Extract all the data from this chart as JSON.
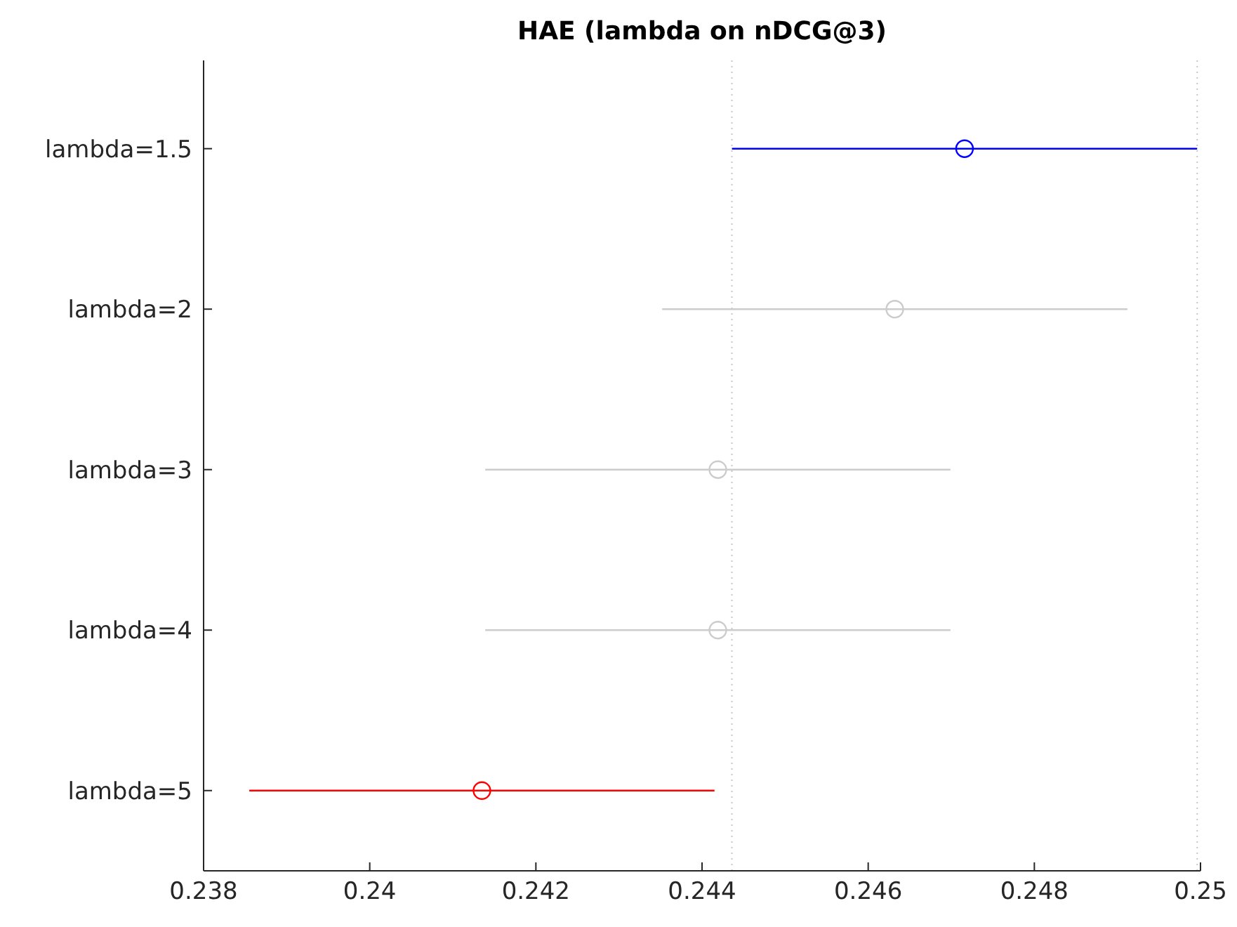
{
  "chart_data": {
    "type": "scatter",
    "title": "HAE (lambda on nDCG@3)",
    "orientation": "horizontal",
    "categories": [
      "lambda=1.5",
      "lambda=2",
      "lambda=3",
      "lambda=4",
      "lambda=5"
    ],
    "values": [
      0.24716,
      0.24632,
      0.24419,
      0.24419,
      0.24135
    ],
    "errors": [
      0.0028,
      0.0028,
      0.0028,
      0.0028,
      0.0028
    ],
    "colors": [
      "#0000ff",
      "#cccccc",
      "#cccccc",
      "#cccccc",
      "#ff0000"
    ],
    "marker": "circle",
    "grid": false,
    "legend": false,
    "xlim": [
      0.238,
      0.25
    ],
    "xticks": [
      0.238,
      0.24,
      0.242,
      0.244,
      0.246,
      0.248,
      0.25
    ],
    "ref_lines": [
      {
        "axis": "x",
        "value": 0.24436,
        "color": "#c8c8c8",
        "line_style": "dotted"
      },
      {
        "axis": "x",
        "value": 0.24996,
        "color": "#c8c8c8",
        "line_style": "dotted"
      }
    ]
  }
}
